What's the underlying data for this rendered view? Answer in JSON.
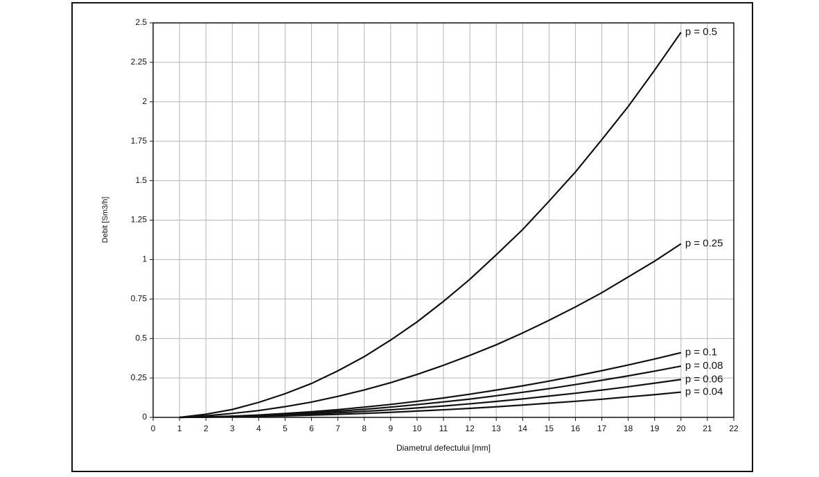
{
  "chart_data": {
    "type": "line",
    "x_label": "Diametrul defectului [mm]",
    "y_label": "Debit [Sm3/h]",
    "x": [
      1,
      2,
      3,
      4,
      5,
      6,
      7,
      8,
      9,
      10,
      11,
      12,
      13,
      14,
      15,
      16,
      17,
      18,
      19,
      20
    ],
    "series": [
      {
        "name": "p = 0.5",
        "color": "#111111",
        "values": [
          0,
          0.02,
          0.05,
          0.095,
          0.15,
          0.215,
          0.295,
          0.385,
          0.49,
          0.605,
          0.735,
          0.875,
          1.03,
          1.19,
          1.37,
          1.555,
          1.76,
          1.97,
          2.2,
          2.44
        ]
      },
      {
        "name": "p = 0.25",
        "color": "#111111",
        "values": [
          0,
          0.01,
          0.025,
          0.043,
          0.068,
          0.097,
          0.133,
          0.174,
          0.22,
          0.272,
          0.33,
          0.393,
          0.46,
          0.535,
          0.615,
          0.7,
          0.79,
          0.89,
          0.99,
          1.1
        ]
      },
      {
        "name": "p = 0.1",
        "color": "#111111",
        "values": [
          0,
          0.003,
          0.008,
          0.015,
          0.025,
          0.036,
          0.049,
          0.065,
          0.082,
          0.102,
          0.123,
          0.147,
          0.173,
          0.2,
          0.23,
          0.262,
          0.296,
          0.332,
          0.37,
          0.41
        ]
      },
      {
        "name": "p = 0.08",
        "color": "#111111",
        "values": [
          0,
          0.002,
          0.007,
          0.012,
          0.02,
          0.029,
          0.039,
          0.051,
          0.065,
          0.081,
          0.098,
          0.116,
          0.137,
          0.159,
          0.182,
          0.208,
          0.235,
          0.263,
          0.293,
          0.325
        ]
      },
      {
        "name": "p = 0.06",
        "color": "#111111",
        "values": [
          0,
          0.002,
          0.005,
          0.009,
          0.014,
          0.021,
          0.029,
          0.038,
          0.048,
          0.06,
          0.072,
          0.086,
          0.101,
          0.117,
          0.135,
          0.153,
          0.173,
          0.194,
          0.217,
          0.24
        ]
      },
      {
        "name": "p = 0.04",
        "color": "#111111",
        "values": [
          0,
          0.001,
          0.003,
          0.006,
          0.01,
          0.014,
          0.019,
          0.025,
          0.032,
          0.04,
          0.048,
          0.057,
          0.067,
          0.078,
          0.09,
          0.102,
          0.115,
          0.13,
          0.144,
          0.16
        ]
      }
    ],
    "xlim": [
      0,
      22
    ],
    "xticks": [
      0,
      1,
      2,
      3,
      4,
      5,
      6,
      7,
      8,
      9,
      10,
      11,
      12,
      13,
      14,
      15,
      16,
      17,
      18,
      19,
      20,
      21,
      22
    ],
    "ylim": [
      0,
      2.5
    ],
    "yticks": [
      0,
      0.25,
      0.5,
      0.75,
      1,
      1.25,
      1.5,
      1.75,
      2,
      2.25,
      2.5
    ],
    "grid": true
  }
}
